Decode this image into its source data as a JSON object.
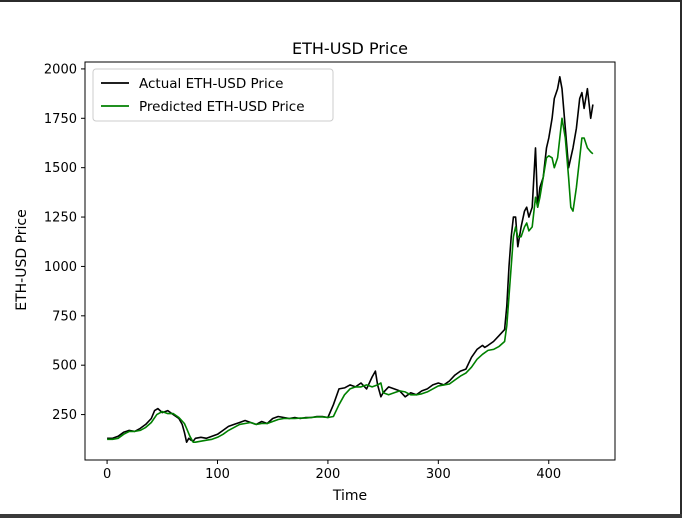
{
  "chart_data": {
    "type": "line",
    "title": "ETH-USD Price",
    "xlabel": "Time",
    "ylabel": "ETH-USD Price",
    "xlim": [
      -20,
      460
    ],
    "ylim": [
      20,
      2035
    ],
    "xticks": [
      0,
      100,
      200,
      300,
      400
    ],
    "yticks": [
      250,
      500,
      750,
      1000,
      1250,
      1500,
      1750,
      2000
    ],
    "grid": false,
    "legend_position": "upper left",
    "series": [
      {
        "name": "Actual ETH-USD Price",
        "color": "#000000",
        "x": [
          0,
          5,
          10,
          15,
          20,
          25,
          30,
          35,
          40,
          43,
          46,
          50,
          55,
          60,
          65,
          68,
          70,
          72,
          74,
          76,
          78,
          80,
          85,
          90,
          95,
          100,
          105,
          110,
          115,
          120,
          125,
          130,
          135,
          140,
          145,
          150,
          155,
          160,
          165,
          170,
          175,
          180,
          185,
          190,
          195,
          200,
          205,
          210,
          215,
          220,
          225,
          230,
          235,
          240,
          243,
          245,
          248,
          250,
          255,
          260,
          265,
          270,
          275,
          280,
          285,
          290,
          295,
          300,
          305,
          310,
          315,
          320,
          325,
          330,
          335,
          340,
          342,
          345,
          350,
          355,
          360,
          362,
          364,
          366,
          368,
          370,
          372,
          375,
          378,
          380,
          382,
          385,
          388,
          390,
          392,
          395,
          398,
          400,
          403,
          405,
          408,
          410,
          412,
          415,
          418,
          420,
          422,
          425,
          428,
          430,
          432,
          435,
          438,
          440
        ],
        "y": [
          130,
          130,
          140,
          160,
          170,
          165,
          180,
          200,
          230,
          270,
          280,
          260,
          270,
          250,
          230,
          200,
          160,
          110,
          130,
          120,
          115,
          130,
          135,
          130,
          140,
          150,
          170,
          190,
          200,
          210,
          220,
          210,
          200,
          215,
          205,
          230,
          240,
          235,
          230,
          235,
          230,
          235,
          235,
          240,
          240,
          235,
          300,
          380,
          385,
          400,
          390,
          410,
          380,
          440,
          470,
          400,
          340,
          360,
          390,
          380,
          370,
          340,
          360,
          350,
          370,
          380,
          400,
          410,
          400,
          420,
          450,
          470,
          480,
          540,
          580,
          600,
          590,
          600,
          620,
          650,
          680,
          800,
          1000,
          1150,
          1250,
          1250,
          1100,
          1200,
          1280,
          1300,
          1250,
          1300,
          1600,
          1300,
          1400,
          1450,
          1600,
          1650,
          1750,
          1850,
          1900,
          1960,
          1900,
          1700,
          1500,
          1550,
          1600,
          1700,
          1850,
          1880,
          1800,
          1900,
          1750,
          1820
        ]
      },
      {
        "name": "Predicted ETH-USD Price",
        "color": "#008000",
        "x": [
          0,
          5,
          10,
          15,
          20,
          25,
          30,
          35,
          40,
          45,
          50,
          55,
          60,
          65,
          70,
          72,
          75,
          78,
          80,
          85,
          90,
          95,
          100,
          105,
          110,
          115,
          120,
          125,
          130,
          135,
          140,
          145,
          150,
          155,
          160,
          165,
          170,
          175,
          180,
          185,
          190,
          195,
          200,
          205,
          210,
          215,
          220,
          225,
          230,
          235,
          240,
          245,
          248,
          250,
          255,
          260,
          265,
          270,
          275,
          280,
          285,
          290,
          295,
          300,
          305,
          310,
          315,
          320,
          325,
          330,
          335,
          340,
          345,
          350,
          355,
          360,
          362,
          364,
          366,
          368,
          370,
          372,
          375,
          378,
          380,
          382,
          385,
          388,
          390,
          392,
          395,
          398,
          400,
          403,
          405,
          408,
          410,
          412,
          415,
          418,
          420,
          422,
          425,
          428,
          430,
          432,
          435,
          438,
          440
        ],
        "y": [
          125,
          125,
          130,
          150,
          165,
          165,
          170,
          185,
          210,
          250,
          265,
          255,
          255,
          235,
          205,
          180,
          140,
          110,
          110,
          115,
          120,
          125,
          135,
          150,
          170,
          185,
          200,
          205,
          210,
          200,
          205,
          205,
          215,
          225,
          230,
          230,
          230,
          232,
          232,
          235,
          238,
          238,
          235,
          240,
          300,
          350,
          380,
          390,
          390,
          400,
          390,
          400,
          410,
          360,
          350,
          360,
          370,
          365,
          350,
          350,
          355,
          365,
          380,
          395,
          400,
          405,
          425,
          445,
          460,
          490,
          530,
          555,
          575,
          580,
          595,
          620,
          700,
          850,
          1000,
          1150,
          1200,
          1150,
          1150,
          1200,
          1220,
          1180,
          1200,
          1350,
          1300,
          1350,
          1450,
          1550,
          1560,
          1550,
          1500,
          1550,
          1650,
          1750,
          1650,
          1450,
          1300,
          1280,
          1400,
          1550,
          1650,
          1650,
          1600,
          1580,
          1570
        ]
      }
    ]
  }
}
